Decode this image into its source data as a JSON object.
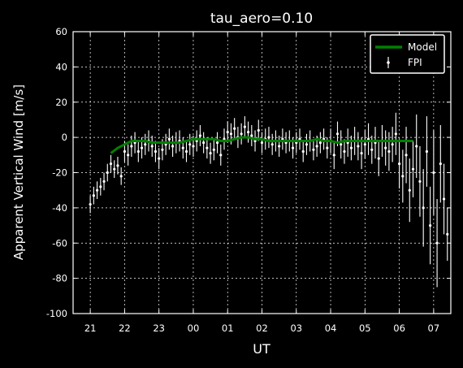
{
  "chart_data": {
    "type": "line",
    "title": "tau_aero=0.10",
    "xlabel": "UT",
    "ylabel": "Apparent Vertical Wind [m/s]",
    "x_range_hours": [
      20.5,
      31.5
    ],
    "xticks": [
      {
        "label": "21",
        "hour": 21
      },
      {
        "label": "22",
        "hour": 22
      },
      {
        "label": "23",
        "hour": 23
      },
      {
        "label": "00",
        "hour": 24
      },
      {
        "label": "01",
        "hour": 25
      },
      {
        "label": "02",
        "hour": 26
      },
      {
        "label": "03",
        "hour": 27
      },
      {
        "label": "04",
        "hour": 28
      },
      {
        "label": "05",
        "hour": 29
      },
      {
        "label": "06",
        "hour": 30
      },
      {
        "label": "07",
        "hour": 31
      }
    ],
    "ylim": [
      -100,
      60
    ],
    "yticks": [
      60,
      40,
      20,
      0,
      -20,
      -40,
      -60,
      -80,
      -100
    ],
    "grid": true,
    "legend_position": "top-right",
    "colors": {
      "background": "#000000",
      "model": "#008000",
      "fpi": "#ffffff"
    },
    "series": [
      {
        "name": "Model",
        "style": "line",
        "x": [
          21.6,
          21.8,
          22.0,
          22.2,
          22.4,
          22.6,
          22.8,
          23.0,
          23.2,
          23.4,
          23.6,
          23.8,
          24.0,
          24.2,
          24.4,
          24.6,
          24.8,
          25.0,
          25.2,
          25.4,
          25.6,
          25.8,
          26.0,
          26.2,
          26.4,
          26.6,
          26.8,
          27.0,
          27.2,
          27.4,
          27.6,
          27.8,
          28.0,
          28.2,
          28.4,
          28.6,
          28.8,
          29.0,
          29.2,
          29.4,
          29.6,
          29.8,
          30.0,
          30.2,
          30.4
        ],
        "y": [
          -9,
          -6,
          -4,
          -2,
          -2,
          -2,
          -3,
          -3,
          -3,
          -3,
          -3,
          -2,
          -1,
          -1,
          -1,
          -1,
          -2,
          -2,
          -1,
          0,
          0,
          -1,
          -1,
          -2,
          -2,
          -2,
          -2,
          -2,
          -2,
          -2,
          -1,
          -2,
          -2,
          -3,
          -2,
          -2,
          -2,
          -2,
          -2,
          -2,
          -2,
          -2,
          -2,
          -2,
          -2
        ]
      },
      {
        "name": "FPI",
        "style": "errorbar",
        "x": [
          21.0,
          21.1,
          21.2,
          21.3,
          21.4,
          21.5,
          21.6,
          21.7,
          21.8,
          21.9,
          22.0,
          22.1,
          22.2,
          22.3,
          22.4,
          22.5,
          22.6,
          22.7,
          22.8,
          22.9,
          23.0,
          23.1,
          23.2,
          23.3,
          23.4,
          23.5,
          23.6,
          23.7,
          23.8,
          23.9,
          24.0,
          24.1,
          24.2,
          24.3,
          24.4,
          24.5,
          24.6,
          24.7,
          24.8,
          24.9,
          25.0,
          25.1,
          25.2,
          25.3,
          25.4,
          25.5,
          25.6,
          25.7,
          25.8,
          25.9,
          26.0,
          26.1,
          26.2,
          26.3,
          26.4,
          26.5,
          26.6,
          26.7,
          26.8,
          26.9,
          27.0,
          27.1,
          27.2,
          27.3,
          27.4,
          27.5,
          27.6,
          27.7,
          27.8,
          27.9,
          28.0,
          28.1,
          28.2,
          28.3,
          28.4,
          28.5,
          28.6,
          28.7,
          28.8,
          28.9,
          29.0,
          29.1,
          29.2,
          29.3,
          29.4,
          29.5,
          29.6,
          29.7,
          29.8,
          29.9,
          30.0,
          30.1,
          30.2,
          30.3,
          30.4,
          30.5,
          30.6,
          30.7,
          30.8,
          30.9,
          31.0,
          31.1,
          31.2,
          31.3,
          31.4
        ],
        "y": [
          -38,
          -33,
          -30,
          -28,
          -25,
          -20,
          -15,
          -18,
          -16,
          -22,
          -8,
          -10,
          -5,
          -3,
          -8,
          -6,
          -4,
          -2,
          -5,
          -8,
          -12,
          -7,
          -4,
          -1,
          -5,
          -3,
          -2,
          -6,
          -8,
          -4,
          -5,
          -2,
          1,
          -3,
          -6,
          -9,
          -7,
          -3,
          -10,
          -1,
          3,
          2,
          5,
          0,
          2,
          6,
          3,
          1,
          -2,
          4,
          -3,
          -1,
          0,
          -4,
          -2,
          -5,
          -1,
          -3,
          -2,
          -6,
          -3,
          -1,
          -8,
          -4,
          -2,
          -7,
          -5,
          -3,
          -1,
          -6,
          -2,
          -10,
          2,
          -4,
          -8,
          -3,
          -6,
          -2,
          -5,
          -9,
          -4,
          -1,
          -7,
          -3,
          -12,
          -2,
          -6,
          -8,
          -4,
          2,
          -15,
          -22,
          -10,
          -30,
          -18,
          -5,
          -25,
          -40,
          -8,
          -50,
          -20,
          -60,
          -15,
          -35,
          -55
        ],
        "err": [
          5,
          5,
          5,
          5,
          5,
          5,
          5,
          5,
          5,
          5,
          6,
          6,
          6,
          6,
          6,
          6,
          6,
          6,
          6,
          6,
          6,
          6,
          6,
          6,
          6,
          6,
          6,
          6,
          6,
          6,
          6,
          6,
          6,
          6,
          6,
          6,
          6,
          6,
          6,
          6,
          6,
          6,
          6,
          6,
          6,
          6,
          6,
          6,
          6,
          6,
          6,
          6,
          6,
          6,
          6,
          6,
          6,
          6,
          6,
          6,
          6,
          6,
          6,
          6,
          6,
          6,
          6,
          6,
          6,
          6,
          7,
          8,
          7,
          8,
          7,
          8,
          7,
          8,
          8,
          9,
          8,
          9,
          8,
          9,
          10,
          9,
          10,
          11,
          10,
          12,
          14,
          15,
          16,
          18,
          16,
          18,
          20,
          22,
          20,
          22,
          24,
          25,
          22,
          20,
          15
        ]
      }
    ]
  }
}
